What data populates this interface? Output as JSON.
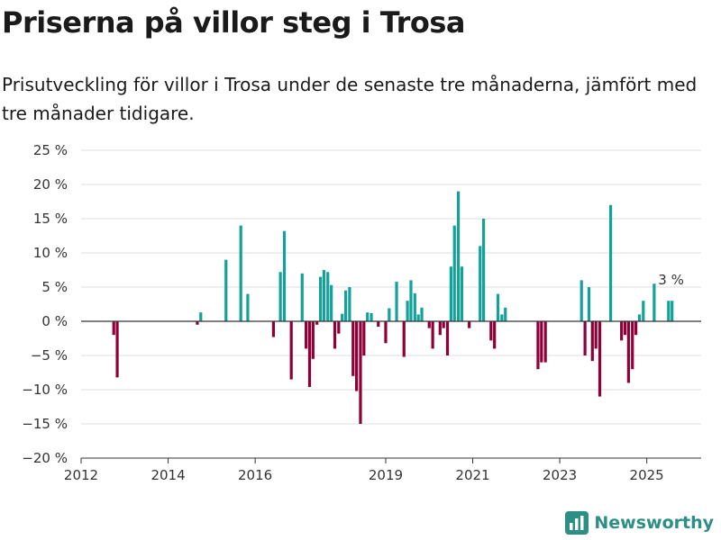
{
  "chart_data": {
    "type": "bar",
    "title": "Priserna på villor steg i Trosa",
    "subtitle": "Prisutveckling för villor i Trosa under de senaste tre månaderna, jämfört med tre månader tidigare.",
    "xlabel": "",
    "ylabel": "",
    "ylim": [
      -20,
      25
    ],
    "yticks": [
      25,
      20,
      15,
      10,
      5,
      0,
      -5,
      -10,
      -15,
      -20
    ],
    "ytick_labels": [
      "25 %",
      "20 %",
      "15 %",
      "10 %",
      "5 %",
      "0 %",
      "−5 %",
      "−10 %",
      "−15 %",
      "−20 %"
    ],
    "xlim": [
      2012.0,
      2026.25
    ],
    "xticks": [
      2012,
      2014,
      2016,
      2019,
      2021,
      2023,
      2025
    ],
    "xtick_labels": [
      "2012",
      "2014",
      "2016",
      "2019",
      "2021",
      "2023",
      "2025"
    ],
    "grid": true,
    "positive_color": "#13a19a",
    "negative_color": "#8e0038",
    "annotation": {
      "text": "3 %",
      "x": 2025.2,
      "y": 3
    },
    "points": [
      {
        "x": 2012.75,
        "y": -2
      },
      {
        "x": 2012.83,
        "y": -8.2
      },
      {
        "x": 2014.67,
        "y": -0.5
      },
      {
        "x": 2014.75,
        "y": 1.3
      },
      {
        "x": 2015.33,
        "y": 9
      },
      {
        "x": 2015.67,
        "y": 14
      },
      {
        "x": 2015.83,
        "y": 4
      },
      {
        "x": 2016.42,
        "y": -2.3
      },
      {
        "x": 2016.58,
        "y": 7.2
      },
      {
        "x": 2016.67,
        "y": 13.2
      },
      {
        "x": 2016.83,
        "y": -8.5
      },
      {
        "x": 2017.08,
        "y": 7
      },
      {
        "x": 2017.17,
        "y": -4
      },
      {
        "x": 2017.25,
        "y": -9.6
      },
      {
        "x": 2017.33,
        "y": -5.5
      },
      {
        "x": 2017.42,
        "y": -0.5
      },
      {
        "x": 2017.5,
        "y": 6.5
      },
      {
        "x": 2017.58,
        "y": 7.5
      },
      {
        "x": 2017.67,
        "y": 7.2
      },
      {
        "x": 2017.75,
        "y": 5.3
      },
      {
        "x": 2017.83,
        "y": -4
      },
      {
        "x": 2017.92,
        "y": -1.8
      },
      {
        "x": 2018.0,
        "y": 1.1
      },
      {
        "x": 2018.08,
        "y": 4.5
      },
      {
        "x": 2018.17,
        "y": 5
      },
      {
        "x": 2018.25,
        "y": -8
      },
      {
        "x": 2018.33,
        "y": -10.2
      },
      {
        "x": 2018.42,
        "y": -15
      },
      {
        "x": 2018.5,
        "y": -5
      },
      {
        "x": 2018.58,
        "y": 1.3
      },
      {
        "x": 2018.67,
        "y": 1.2
      },
      {
        "x": 2018.83,
        "y": -0.8
      },
      {
        "x": 2019.0,
        "y": -3.2
      },
      {
        "x": 2019.08,
        "y": 1.9
      },
      {
        "x": 2019.25,
        "y": 5.8
      },
      {
        "x": 2019.42,
        "y": -5.2
      },
      {
        "x": 2019.5,
        "y": 3
      },
      {
        "x": 2019.58,
        "y": 6
      },
      {
        "x": 2019.67,
        "y": 4.1
      },
      {
        "x": 2019.75,
        "y": 1
      },
      {
        "x": 2019.83,
        "y": 2
      },
      {
        "x": 2020.0,
        "y": -1
      },
      {
        "x": 2020.08,
        "y": -4
      },
      {
        "x": 2020.25,
        "y": -2
      },
      {
        "x": 2020.33,
        "y": -1
      },
      {
        "x": 2020.42,
        "y": -5
      },
      {
        "x": 2020.5,
        "y": 8
      },
      {
        "x": 2020.58,
        "y": 14
      },
      {
        "x": 2020.67,
        "y": 19
      },
      {
        "x": 2020.75,
        "y": 8
      },
      {
        "x": 2020.92,
        "y": -1
      },
      {
        "x": 2021.17,
        "y": 11
      },
      {
        "x": 2021.25,
        "y": 15
      },
      {
        "x": 2021.42,
        "y": -2.8
      },
      {
        "x": 2021.5,
        "y": -4
      },
      {
        "x": 2021.58,
        "y": 4
      },
      {
        "x": 2021.67,
        "y": 1
      },
      {
        "x": 2021.75,
        "y": 2
      },
      {
        "x": 2022.5,
        "y": -7
      },
      {
        "x": 2022.58,
        "y": -6
      },
      {
        "x": 2022.67,
        "y": -6
      },
      {
        "x": 2023.5,
        "y": 6
      },
      {
        "x": 2023.58,
        "y": -5
      },
      {
        "x": 2023.67,
        "y": 5
      },
      {
        "x": 2023.75,
        "y": -5.8
      },
      {
        "x": 2023.83,
        "y": -4
      },
      {
        "x": 2023.92,
        "y": -11
      },
      {
        "x": 2024.17,
        "y": 17
      },
      {
        "x": 2024.42,
        "y": -2.8
      },
      {
        "x": 2024.5,
        "y": -2
      },
      {
        "x": 2024.58,
        "y": -9
      },
      {
        "x": 2024.67,
        "y": -7
      },
      {
        "x": 2024.75,
        "y": -2
      },
      {
        "x": 2024.83,
        "y": 1
      },
      {
        "x": 2024.92,
        "y": 3
      },
      {
        "x": 2025.17,
        "y": 5.5
      },
      {
        "x": 2025.5,
        "y": 3
      },
      {
        "x": 2025.58,
        "y": 3
      }
    ]
  },
  "brand": {
    "name": "Newsworthy",
    "logo_icon": "bar-chart-logo-icon",
    "color": "#2b8f85"
  }
}
